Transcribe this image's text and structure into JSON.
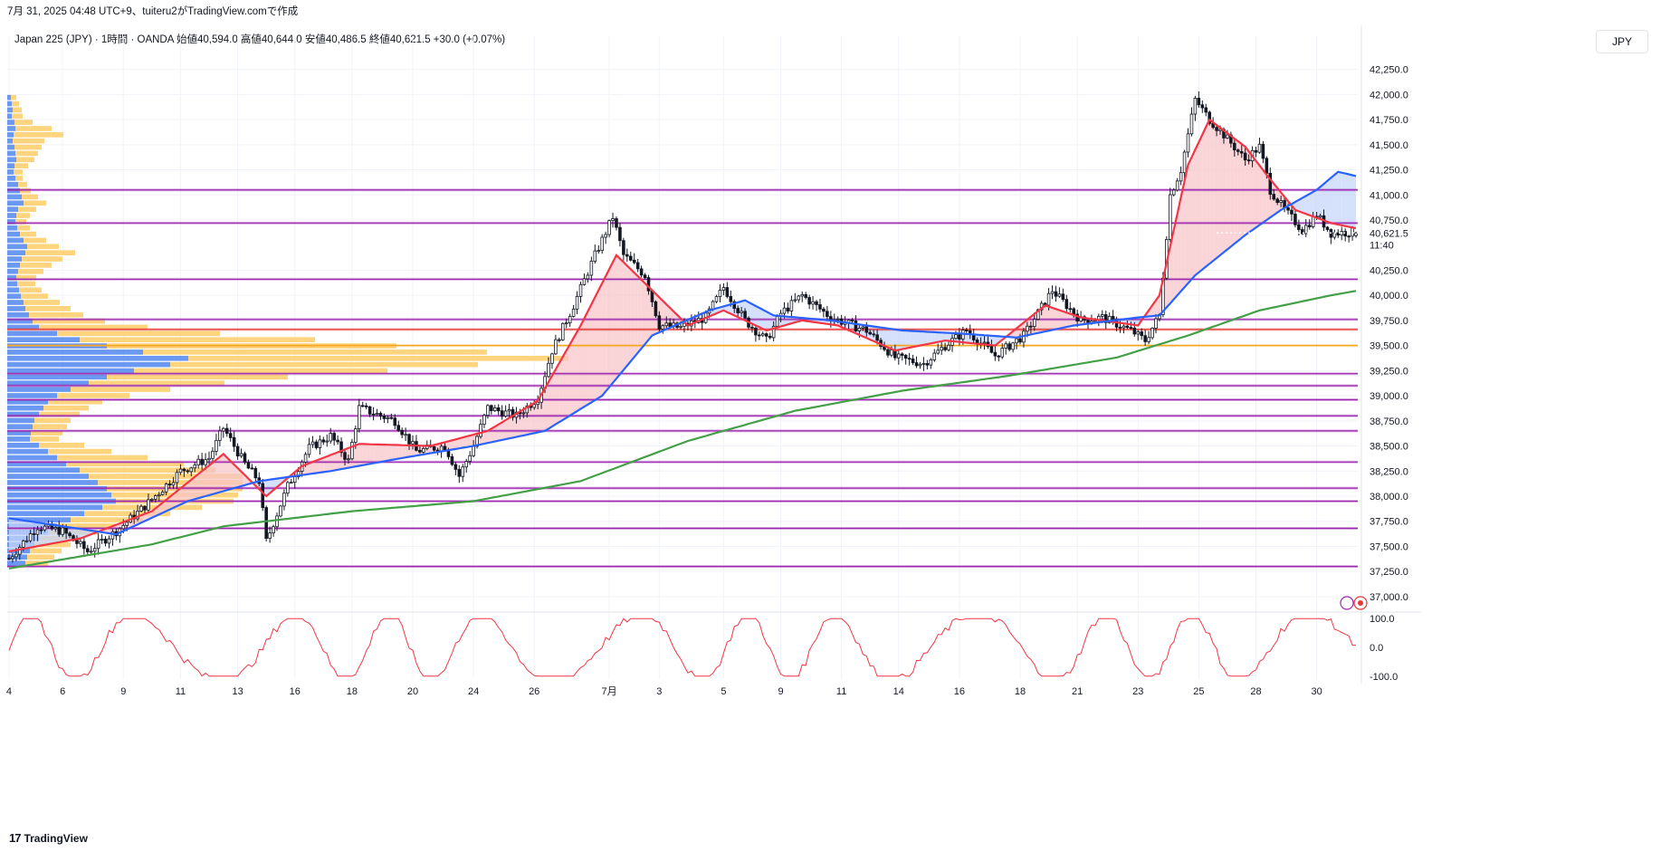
{
  "caption": "7月 31, 2025 04:48 UTC+9、tuiteru2がTradingView.comで作成",
  "legend": "Japan 225 (JPY) · 1時間 · OANDA  始値40,594.0  高値40,644.0  安値40,486.5  終値40,621.5  +30.0 (+0.07%)",
  "currency_button": "JPY",
  "footer_brand": "TradingView",
  "footer_mark": "17",
  "colors": {
    "candle": "#131722",
    "ema_short": "#f23645",
    "ema_mid": "#2962ff",
    "ema_long": "#43a047",
    "bull_fill": "#f8c6c8",
    "bear_fill": "#c5d6fb",
    "hline_purple": "#9c27b0",
    "hline_red": "#e53935",
    "hline_orange": "#f9a825",
    "vp_blue": "#5b8df0",
    "vp_orange": "#ffcf70",
    "oscillator": "#f23645"
  },
  "chart_data": {
    "type": "candlestick",
    "title": "Japan 225 (JPY) · 1時間 · OANDA",
    "ohlc_last": {
      "open": 40594.0,
      "high": 40644.0,
      "low": 40486.5,
      "close": 40621.5,
      "change": "+30.0 (+0.07%)"
    },
    "y_axis": {
      "ylim": [
        36900,
        42400
      ],
      "ticks": [
        "42,250.0",
        "42,000.0",
        "41,750.0",
        "41,500.0",
        "41,250.0",
        "41,000.0",
        "40,750.0",
        "40,250.0",
        "40,000.0",
        "39,750.0",
        "39,500.0",
        "39,250.0",
        "39,000.0",
        "38,750.0",
        "38,500.0",
        "38,250.0",
        "38,000.0",
        "37,750.0",
        "37,500.0",
        "37,250.0",
        "37,000.0"
      ],
      "tick_values": [
        42250,
        42000,
        41750,
        41500,
        41250,
        41000,
        40750,
        40250,
        40000,
        39750,
        39500,
        39250,
        39000,
        38750,
        38500,
        38250,
        38000,
        37750,
        37500,
        37250,
        37000
      ]
    },
    "current_price": {
      "label": "40,621.5",
      "countdown": "11:40",
      "value": 40621.5
    },
    "x_axis": {
      "ticks": [
        "4",
        "6",
        "9",
        "11",
        "13",
        "16",
        "18",
        "20",
        "24",
        "26",
        "7月",
        "3",
        "5",
        "9",
        "11",
        "14",
        "16",
        "18",
        "21",
        "23",
        "25",
        "28",
        "30"
      ],
      "tick_index": [
        0,
        15,
        32,
        48,
        64,
        80,
        96,
        113,
        130,
        147,
        168,
        182,
        200,
        216,
        233,
        249,
        266,
        283,
        299,
        316,
        333,
        349,
        366
      ],
      "n_bars": 378
    },
    "price_path": [
      [
        0,
        37380
      ],
      [
        8,
        37700
      ],
      [
        15,
        37650
      ],
      [
        22,
        37450
      ],
      [
        30,
        37650
      ],
      [
        38,
        37900
      ],
      [
        48,
        38250
      ],
      [
        56,
        38380
      ],
      [
        60,
        38680
      ],
      [
        66,
        38320
      ],
      [
        70,
        38150
      ],
      [
        72,
        37550
      ],
      [
        78,
        38100
      ],
      [
        84,
        38480
      ],
      [
        90,
        38600
      ],
      [
        95,
        38350
      ],
      [
        98,
        38880
      ],
      [
        108,
        38750
      ],
      [
        114,
        38450
      ],
      [
        122,
        38500
      ],
      [
        126,
        38200
      ],
      [
        130,
        38500
      ],
      [
        134,
        38880
      ],
      [
        142,
        38800
      ],
      [
        148,
        38980
      ],
      [
        152,
        39450
      ],
      [
        158,
        39900
      ],
      [
        164,
        40400
      ],
      [
        169,
        40780
      ],
      [
        172,
        40400
      ],
      [
        178,
        40200
      ],
      [
        182,
        39700
      ],
      [
        188,
        39680
      ],
      [
        195,
        39780
      ],
      [
        200,
        40080
      ],
      [
        206,
        39750
      ],
      [
        212,
        39550
      ],
      [
        216,
        39820
      ],
      [
        222,
        40000
      ],
      [
        230,
        39780
      ],
      [
        240,
        39650
      ],
      [
        248,
        39380
      ],
      [
        256,
        39320
      ],
      [
        262,
        39500
      ],
      [
        268,
        39650
      ],
      [
        276,
        39400
      ],
      [
        284,
        39600
      ],
      [
        292,
        40050
      ],
      [
        300,
        39750
      ],
      [
        306,
        39780
      ],
      [
        314,
        39650
      ],
      [
        318,
        39550
      ],
      [
        322,
        39800
      ],
      [
        325,
        41000
      ],
      [
        328,
        41250
      ],
      [
        332,
        41950
      ],
      [
        336,
        41750
      ],
      [
        340,
        41600
      ],
      [
        346,
        41350
      ],
      [
        350,
        41480
      ],
      [
        353,
        41050
      ],
      [
        357,
        40850
      ],
      [
        362,
        40650
      ],
      [
        366,
        40800
      ],
      [
        370,
        40620
      ],
      [
        378,
        40630
      ]
    ],
    "series": [
      {
        "name": "EMA short",
        "color": "#f23645",
        "path": [
          [
            0,
            37450
          ],
          [
            20,
            37580
          ],
          [
            40,
            37850
          ],
          [
            60,
            38420
          ],
          [
            72,
            38000
          ],
          [
            82,
            38300
          ],
          [
            98,
            38520
          ],
          [
            118,
            38500
          ],
          [
            134,
            38650
          ],
          [
            148,
            38950
          ],
          [
            160,
            39700
          ],
          [
            170,
            40400
          ],
          [
            180,
            40050
          ],
          [
            190,
            39700
          ],
          [
            200,
            39850
          ],
          [
            212,
            39650
          ],
          [
            222,
            39750
          ],
          [
            232,
            39700
          ],
          [
            248,
            39450
          ],
          [
            262,
            39550
          ],
          [
            276,
            39500
          ],
          [
            290,
            39900
          ],
          [
            300,
            39780
          ],
          [
            316,
            39700
          ],
          [
            322,
            40000
          ],
          [
            330,
            41300
          ],
          [
            336,
            41750
          ],
          [
            346,
            41480
          ],
          [
            352,
            41200
          ],
          [
            360,
            40850
          ],
          [
            370,
            40720
          ],
          [
            378,
            40660
          ]
        ]
      },
      {
        "name": "EMA mid",
        "color": "#2962ff",
        "path": [
          [
            0,
            37780
          ],
          [
            30,
            37620
          ],
          [
            50,
            37950
          ],
          [
            70,
            38150
          ],
          [
            90,
            38250
          ],
          [
            110,
            38380
          ],
          [
            130,
            38500
          ],
          [
            150,
            38650
          ],
          [
            166,
            39000
          ],
          [
            180,
            39600
          ],
          [
            196,
            39850
          ],
          [
            206,
            39950
          ],
          [
            214,
            39800
          ],
          [
            230,
            39750
          ],
          [
            250,
            39650
          ],
          [
            266,
            39620
          ],
          [
            282,
            39580
          ],
          [
            298,
            39700
          ],
          [
            316,
            39780
          ],
          [
            322,
            39800
          ],
          [
            332,
            40200
          ],
          [
            346,
            40600
          ],
          [
            356,
            40850
          ],
          [
            366,
            41050
          ],
          [
            372,
            41230
          ],
          [
            378,
            41180
          ]
        ]
      },
      {
        "name": "EMA long",
        "color": "#43a047",
        "path": [
          [
            0,
            37280
          ],
          [
            40,
            37520
          ],
          [
            60,
            37700
          ],
          [
            96,
            37850
          ],
          [
            130,
            37950
          ],
          [
            160,
            38150
          ],
          [
            190,
            38550
          ],
          [
            220,
            38850
          ],
          [
            250,
            39050
          ],
          [
            280,
            39200
          ],
          [
            310,
            39380
          ],
          [
            330,
            39600
          ],
          [
            350,
            39850
          ],
          [
            370,
            40000
          ],
          [
            378,
            40050
          ]
        ]
      }
    ],
    "horizontal_lines": [
      {
        "value": 41050,
        "color": "#9c27b0"
      },
      {
        "value": 40720,
        "color": "#9c27b0"
      },
      {
        "value": 40160,
        "color": "#9c27b0"
      },
      {
        "value": 39760,
        "color": "#9c27b0"
      },
      {
        "value": 39660,
        "color": "#e53935"
      },
      {
        "value": 39500,
        "color": "#f9a825"
      },
      {
        "value": 39220,
        "color": "#9c27b0"
      },
      {
        "value": 39100,
        "color": "#9c27b0"
      },
      {
        "value": 38960,
        "color": "#9c27b0"
      },
      {
        "value": 38800,
        "color": "#9c27b0"
      },
      {
        "value": 38650,
        "color": "#9c27b0"
      },
      {
        "value": 38340,
        "color": "#9c27b0"
      },
      {
        "value": 38080,
        "color": "#9c27b0"
      },
      {
        "value": 37950,
        "color": "#9c27b0"
      },
      {
        "value": 37680,
        "color": "#9c27b0"
      },
      {
        "value": 37300,
        "color": "#9c27b0"
      }
    ],
    "volume_profile": {
      "price_min": 37300,
      "price_max": 42000,
      "rows_blue": [
        4,
        5,
        6,
        5,
        8,
        9,
        7,
        6,
        8,
        9,
        10,
        8,
        7,
        9,
        12,
        14,
        16,
        18,
        12,
        10,
        9,
        11,
        14,
        18,
        22,
        20,
        16,
        14,
        12,
        10,
        11,
        13,
        15,
        18,
        20,
        24,
        28,
        35,
        55,
        80,
        110,
        150,
        200,
        180,
        140,
        110,
        90,
        70,
        55,
        45,
        40,
        35,
        30,
        28,
        26,
        25,
        35,
        45,
        55,
        65,
        80,
        90,
        100,
        110,
        115,
        120,
        105,
        85,
        70,
        55,
        45,
        35,
        30,
        25,
        22,
        20
      ],
      "rows_orange": [
        6,
        8,
        10,
        12,
        20,
        40,
        55,
        35,
        30,
        25,
        20,
        15,
        10,
        8,
        10,
        12,
        18,
        25,
        20,
        15,
        12,
        14,
        18,
        25,
        35,
        55,
        45,
        35,
        28,
        22,
        20,
        25,
        30,
        40,
        50,
        60,
        80,
        120,
        180,
        260,
        320,
        380,
        420,
        340,
        280,
        200,
        150,
        110,
        80,
        60,
        50,
        45,
        40,
        38,
        35,
        32,
        50,
        70,
        100,
        130,
        150,
        170,
        160,
        150,
        140,
        130,
        110,
        95,
        80,
        65,
        55,
        45,
        40,
        35,
        30,
        25
      ]
    },
    "oscillator": {
      "type": "line",
      "ylim": [
        -110,
        110
      ],
      "ticks": [
        "100.0",
        "0.0",
        "-100.0"
      ],
      "tick_values": [
        100,
        0,
        -100
      ],
      "color": "#f23645"
    }
  }
}
